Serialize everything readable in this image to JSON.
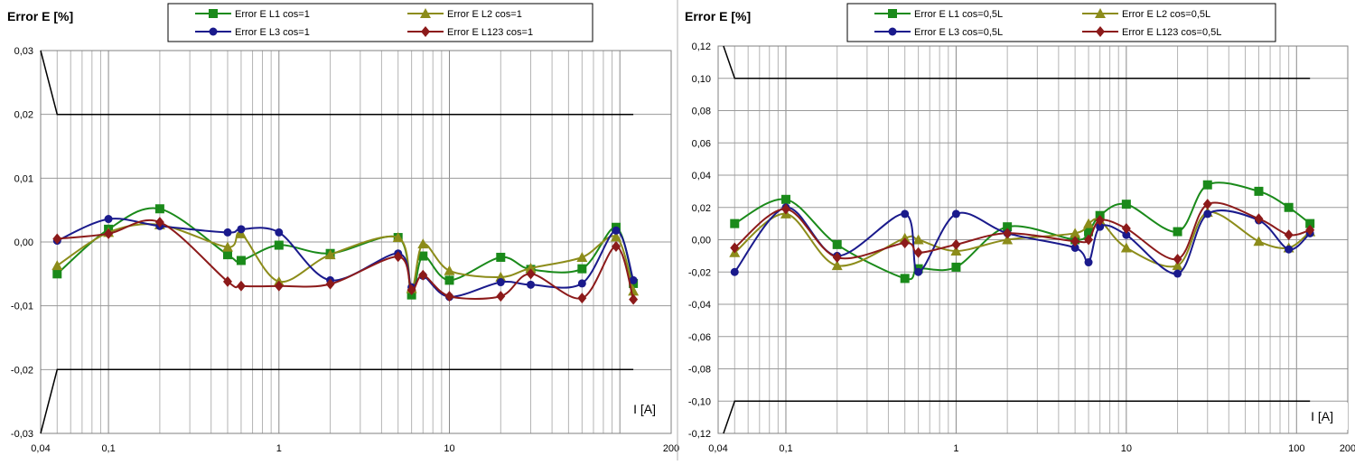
{
  "chart_data": [
    {
      "type": "line",
      "ylabel": "Error E [%]",
      "xlabel": "I [A]",
      "xscale": "log",
      "xlim": [
        0.04,
        200
      ],
      "ylim": [
        -0.03,
        0.03
      ],
      "grid": true,
      "legend_position": "top",
      "xticks": [
        0.04,
        0.1,
        1,
        10,
        200
      ],
      "xtick_labels": [
        "0,04",
        "0,1",
        "1",
        "10",
        "200"
      ],
      "yticks": [
        -0.03,
        -0.02,
        -0.01,
        0.0,
        0.01,
        0.02,
        0.03
      ],
      "ytick_labels": [
        "-0,03",
        "-0,02",
        "-0,01",
        "0,00",
        "0,01",
        "0,02",
        "0,03"
      ],
      "limit_lines": [
        {
          "x": [
            0.04,
            0.05,
            120
          ],
          "y": [
            0.03,
            0.02,
            0.02
          ]
        },
        {
          "x": [
            0.04,
            0.05,
            120
          ],
          "y": [
            -0.03,
            -0.02,
            -0.02
          ]
        }
      ],
      "series": [
        {
          "name": "Error E L1 cos=1",
          "color": "#1a8a1a",
          "marker": "square",
          "x": [
            0.05,
            0.1,
            0.2,
            0.5,
            0.6,
            1,
            2,
            5,
            6,
            7,
            10,
            20,
            30,
            60,
            95,
            120
          ],
          "y": [
            -0.005,
            0.002,
            0.0052,
            -0.002,
            -0.0029,
            -0.0005,
            -0.0018,
            0.0007,
            -0.0083,
            -0.0022,
            -0.006,
            -0.0024,
            -0.0043,
            -0.0042,
            0.0023,
            -0.0065
          ]
        },
        {
          "name": "Error E L2 cos=1",
          "color": "#8c8c1a",
          "marker": "triangle",
          "x": [
            0.05,
            0.1,
            0.2,
            0.5,
            0.6,
            1,
            2,
            5,
            6,
            7,
            10,
            20,
            30,
            60,
            95,
            120
          ],
          "y": [
            -0.0037,
            0.0015,
            0.0027,
            -0.0008,
            0.0013,
            -0.0062,
            -0.002,
            0.0007,
            -0.0073,
            -0.0003,
            -0.0045,
            -0.0055,
            -0.0041,
            -0.0024,
            0.0008,
            -0.0077
          ]
        },
        {
          "name": "Error E L3 cos=1",
          "color": "#1a1a8c",
          "marker": "circle",
          "x": [
            0.05,
            0.1,
            0.2,
            0.5,
            0.6,
            1,
            2,
            5,
            6,
            7,
            10,
            20,
            30,
            60,
            95,
            120
          ],
          "y": [
            0.0002,
            0.0036,
            0.0025,
            0.0015,
            0.002,
            0.0015,
            -0.006,
            -0.0018,
            -0.0071,
            -0.0053,
            -0.0086,
            -0.0063,
            -0.0067,
            -0.0065,
            0.0018,
            -0.006
          ]
        },
        {
          "name": "Error E L123 cos=1",
          "color": "#8c1a1a",
          "marker": "diamond",
          "x": [
            0.05,
            0.1,
            0.2,
            0.5,
            0.6,
            1,
            2,
            5,
            6,
            7,
            10,
            20,
            30,
            60,
            95,
            120
          ],
          "y": [
            0.0005,
            0.0013,
            0.0031,
            -0.0062,
            -0.0069,
            -0.0069,
            -0.0066,
            -0.0023,
            -0.0075,
            -0.0052,
            -0.0085,
            -0.0085,
            -0.005,
            -0.0088,
            -0.0007,
            -0.009
          ]
        }
      ]
    },
    {
      "type": "line",
      "ylabel": "Error E [%]",
      "xlabel": "I [A]",
      "xscale": "log",
      "xlim": [
        0.04,
        200
      ],
      "ylim": [
        -0.12,
        0.12
      ],
      "grid": true,
      "legend_position": "top",
      "xticks": [
        0.04,
        0.1,
        1,
        10,
        100,
        200
      ],
      "xtick_labels": [
        "0,04",
        "0,1",
        "1",
        "10",
        "100",
        "200"
      ],
      "yticks": [
        -0.12,
        -0.1,
        -0.08,
        -0.06,
        -0.04,
        -0.02,
        0.0,
        0.02,
        0.04,
        0.06,
        0.08,
        0.1,
        0.12
      ],
      "ytick_labels": [
        "-0,12",
        "-0,10",
        "-0,08",
        "-0,06",
        "-0,04",
        "-0,02",
        "0,00",
        "0,02",
        "0,04",
        "0,06",
        "0,08",
        "0,10",
        "0,12"
      ],
      "limit_lines": [
        {
          "x": [
            0.043,
            0.05,
            120
          ],
          "y": [
            0.12,
            0.1,
            0.1
          ]
        },
        {
          "x": [
            0.043,
            0.05,
            120
          ],
          "y": [
            -0.12,
            -0.1,
            -0.1
          ]
        }
      ],
      "series": [
        {
          "name": "Error E L1 cos=0,5L",
          "color": "#1a8a1a",
          "marker": "square",
          "x": [
            0.05,
            0.1,
            0.2,
            0.5,
            0.6,
            1,
            2,
            5,
            6,
            7,
            10,
            20,
            30,
            60,
            90,
            120
          ],
          "y": [
            0.01,
            0.025,
            -0.003,
            -0.024,
            -0.018,
            -0.017,
            0.008,
            0.0,
            0.005,
            0.015,
            0.022,
            0.005,
            0.034,
            0.03,
            0.02,
            0.01
          ]
        },
        {
          "name": "Error E L2 cos=0,5L",
          "color": "#8c8c1a",
          "marker": "triangle",
          "x": [
            0.05,
            0.1,
            0.2,
            0.5,
            0.6,
            1,
            2,
            5,
            6,
            7,
            10,
            20,
            30,
            60,
            90,
            120
          ],
          "y": [
            -0.008,
            0.016,
            -0.016,
            0.001,
            0.0,
            -0.007,
            0.0,
            0.004,
            0.01,
            0.012,
            -0.005,
            -0.016,
            0.017,
            -0.001,
            -0.005,
            0.005
          ]
        },
        {
          "name": "Error E L3 cos=0,5L",
          "color": "#1a1a8c",
          "marker": "circle",
          "x": [
            0.05,
            0.1,
            0.2,
            0.5,
            0.6,
            1,
            2,
            5,
            6,
            7,
            10,
            20,
            30,
            60,
            90,
            120
          ],
          "y": [
            -0.02,
            0.02,
            -0.01,
            0.016,
            -0.02,
            0.016,
            0.004,
            -0.005,
            -0.014,
            0.008,
            0.003,
            -0.021,
            0.016,
            0.012,
            -0.006,
            0.004
          ]
        },
        {
          "name": "Error E L123 cos=0,5L",
          "color": "#8c1a1a",
          "marker": "diamond",
          "x": [
            0.05,
            0.1,
            0.2,
            0.5,
            0.6,
            1,
            2,
            5,
            6,
            7,
            10,
            20,
            30,
            60,
            90,
            120
          ],
          "y": [
            -0.005,
            0.019,
            -0.011,
            -0.002,
            -0.008,
            -0.003,
            0.004,
            -0.001,
            0.0,
            0.012,
            0.007,
            -0.012,
            0.022,
            0.013,
            0.003,
            0.006
          ]
        }
      ]
    }
  ]
}
